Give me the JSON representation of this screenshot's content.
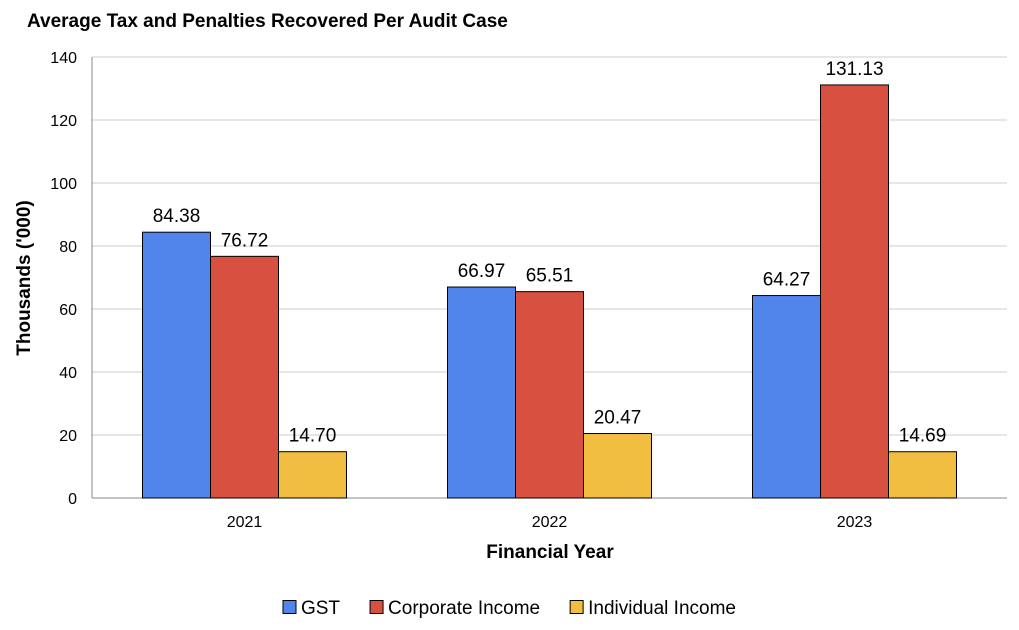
{
  "chart_data": {
    "type": "bar",
    "title": "Average Tax and Penalties Recovered Per Audit Case",
    "xlabel": "Financial Year",
    "ylabel": "Thousands ('000)",
    "categories": [
      "2021",
      "2022",
      "2023"
    ],
    "series": [
      {
        "name": "GST",
        "color": "#5185ec",
        "values": [
          84.38,
          66.97,
          64.27
        ],
        "labels": [
          "84.38",
          "66.97",
          "64.27"
        ]
      },
      {
        "name": "Corporate Income",
        "color": "#d85140",
        "values": [
          76.72,
          65.51,
          131.13
        ],
        "labels": [
          "76.72",
          "65.51",
          "131.13"
        ]
      },
      {
        "name": "Individual Income",
        "color": "#f1be42",
        "values": [
          14.7,
          20.47,
          14.69
        ],
        "labels": [
          "14.70",
          "20.47",
          "14.69"
        ]
      }
    ],
    "ylim": [
      0,
      140
    ],
    "yticks": [
      "0",
      "20",
      "40",
      "60",
      "80",
      "100",
      "120",
      "140"
    ],
    "grid": true,
    "legend_position": "bottom"
  }
}
